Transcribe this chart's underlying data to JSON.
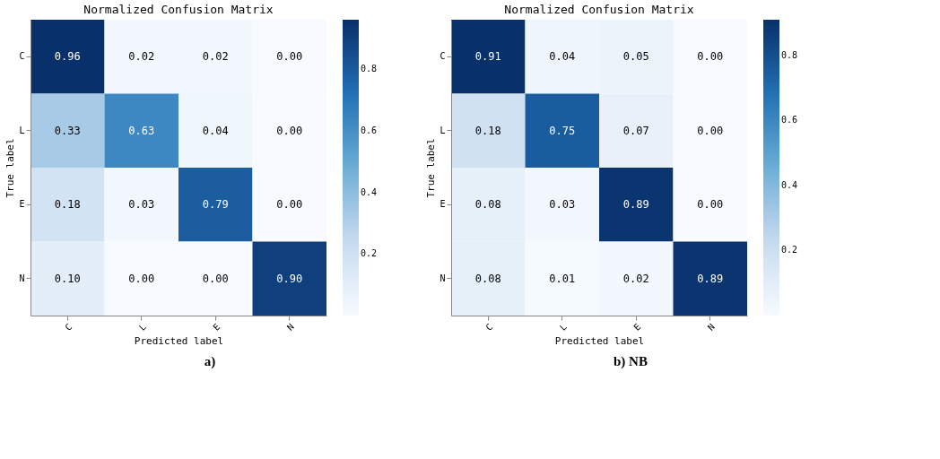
{
  "chart_data": [
    {
      "type": "heatmap",
      "title": "Normalized Confusion Matrix",
      "xlabel": "Predicted label",
      "ylabel": "True label",
      "annotations": [
        "a)"
      ],
      "categories": [
        "C",
        "L",
        "E",
        "N"
      ],
      "y_categories": [
        "C",
        "L",
        "E",
        "N"
      ],
      "cells": [
        [
          0.96,
          0.02,
          0.02,
          0.0
        ],
        [
          0.33,
          0.63,
          0.04,
          0.0
        ],
        [
          0.18,
          0.03,
          0.79,
          0.0
        ],
        [
          0.1,
          0.0,
          0.0,
          0.9
        ]
      ],
      "cell_labels": [
        [
          "0.96",
          "0.02",
          "0.02",
          "0.00"
        ],
        [
          "0.33",
          "0.63",
          "0.04",
          "0.00"
        ],
        [
          "0.18",
          "0.03",
          "0.79",
          "0.00"
        ],
        [
          "0.10",
          "0.00",
          "0.00",
          "0.90"
        ]
      ],
      "clim": [
        0,
        0.96
      ],
      "cticks": [
        0.2,
        0.4,
        0.6,
        0.8
      ]
    },
    {
      "type": "heatmap",
      "title": "Normalized Confusion Matrix",
      "xlabel": "Predicted label",
      "ylabel": "True label",
      "annotations": [
        "b) NB"
      ],
      "categories": [
        "C",
        "L",
        "E",
        "N"
      ],
      "y_categories": [
        "C",
        "L",
        "E",
        "N"
      ],
      "cells": [
        [
          0.91,
          0.04,
          0.05,
          0.0
        ],
        [
          0.18,
          0.75,
          0.07,
          0.0
        ],
        [
          0.08,
          0.03,
          0.89,
          0.0
        ],
        [
          0.08,
          0.01,
          0.02,
          0.89
        ]
      ],
      "cell_labels": [
        [
          "0.91",
          "0.04",
          "0.05",
          "0.00"
        ],
        [
          "0.18",
          "0.75",
          "0.07",
          "0.00"
        ],
        [
          "0.08",
          "0.03",
          "0.89",
          "0.00"
        ],
        [
          "0.08",
          "0.01",
          "0.02",
          "0.89"
        ]
      ],
      "clim": [
        0,
        0.91
      ],
      "cticks": [
        0.2,
        0.4,
        0.6,
        0.8
      ]
    }
  ]
}
